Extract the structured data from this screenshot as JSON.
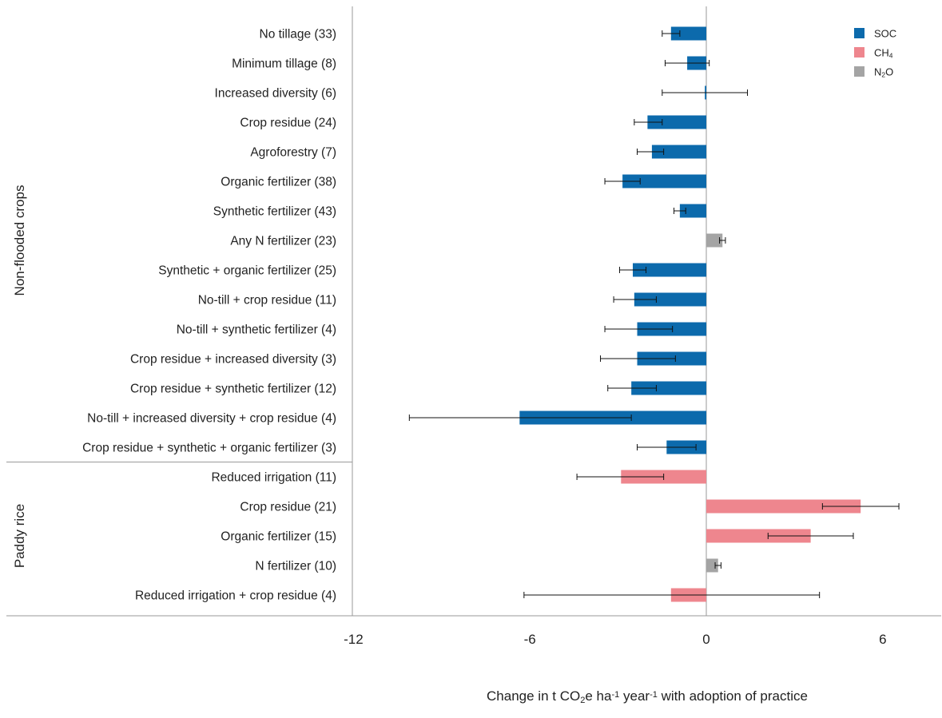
{
  "chart_data": {
    "type": "bar",
    "orientation": "horizontal",
    "xlabel": {
      "parts": [
        {
          "t": "Change in t CO",
          "s": "normal"
        },
        {
          "t": "2",
          "s": "sub"
        },
        {
          "t": "e ha",
          "s": "normal"
        },
        {
          "t": "-1",
          "s": "sup"
        },
        {
          "t": " year",
          "s": "normal"
        },
        {
          "t": "-1",
          "s": "sup"
        },
        {
          "t": " with adoption of practice",
          "s": "normal"
        }
      ]
    },
    "xlim": [
      -12,
      8
    ],
    "xticks": [
      -12,
      -6,
      0,
      6
    ],
    "grid": false,
    "legend_position": "top-right",
    "legend": [
      {
        "key": "SOC",
        "parts": [
          {
            "t": "SOC",
            "s": "normal"
          }
        ],
        "color": "#0c6aac"
      },
      {
        "key": "CH4",
        "parts": [
          {
            "t": "CH",
            "s": "normal"
          },
          {
            "t": "4",
            "s": "sub"
          }
        ],
        "color": "#ee868e"
      },
      {
        "key": "N2O",
        "parts": [
          {
            "t": "N",
            "s": "normal"
          },
          {
            "t": "2",
            "s": "sub"
          },
          {
            "t": "O",
            "s": "normal"
          }
        ],
        "color": "#a4a4a4"
      }
    ],
    "groups": [
      {
        "name": "Non-flooded crops",
        "start": 0,
        "end": 14
      },
      {
        "name": "Paddy rice",
        "start": 15,
        "end": 19
      }
    ],
    "bars": [
      {
        "label": "No tillage (33)",
        "value": -1.2,
        "lo": -1.5,
        "hi": -0.9,
        "series": "SOC"
      },
      {
        "label": "Minimum tillage (8)",
        "value": -0.65,
        "lo": -1.4,
        "hi": 0.1,
        "series": "SOC"
      },
      {
        "label": "Increased diversity (6)",
        "value": -0.05,
        "lo": -1.5,
        "hi": 1.4,
        "series": "SOC"
      },
      {
        "label": "Crop residue (24)",
        "value": -2.0,
        "lo": -2.45,
        "hi": -1.5,
        "series": "SOC"
      },
      {
        "label": "Agroforestry (7)",
        "value": -1.85,
        "lo": -2.35,
        "hi": -1.45,
        "series": "SOC"
      },
      {
        "label": "Organic fertilizer (38)",
        "value": -2.85,
        "lo": -3.45,
        "hi": -2.25,
        "series": "SOC"
      },
      {
        "label": "Synthetic fertilizer (43)",
        "value": -0.9,
        "lo": -1.1,
        "hi": -0.7,
        "series": "SOC"
      },
      {
        "label": "Any N fertilizer (23)",
        "value": 0.55,
        "lo": 0.45,
        "hi": 0.65,
        "series": "N2O"
      },
      {
        "label": "Synthetic + organic fertilizer (25)",
        "value": -2.5,
        "lo": -2.95,
        "hi": -2.05,
        "series": "SOC"
      },
      {
        "label": "No-till + crop residue (11)",
        "value": -2.45,
        "lo": -3.15,
        "hi": -1.7,
        "series": "SOC"
      },
      {
        "label": "No-till + synthetic fertilizer (4)",
        "value": -2.35,
        "lo": -3.45,
        "hi": -1.15,
        "series": "SOC"
      },
      {
        "label": "Crop residue + increased diversity (3)",
        "value": -2.35,
        "lo": -3.6,
        "hi": -1.05,
        "series": "SOC"
      },
      {
        "label": "Crop residue + synthetic fertilizer (12)",
        "value": -2.55,
        "lo": -3.35,
        "hi": -1.7,
        "series": "SOC"
      },
      {
        "label": "No-till + increased diversity + crop residue (4)",
        "value": -6.35,
        "lo": -10.1,
        "hi": -2.55,
        "series": "SOC"
      },
      {
        "label": "Crop residue + synthetic + organic fertilizer (3)",
        "value": -1.35,
        "lo": -2.35,
        "hi": -0.35,
        "series": "SOC"
      },
      {
        "label": "Reduced irrigation (11)",
        "value": -2.9,
        "lo": -4.4,
        "hi": -1.45,
        "series": "CH4"
      },
      {
        "label": "Crop residue (21)",
        "value": 5.25,
        "lo": 3.95,
        "hi": 6.55,
        "series": "CH4"
      },
      {
        "label": "Organic fertilizer (15)",
        "value": 3.55,
        "lo": 2.1,
        "hi": 5.0,
        "series": "CH4"
      },
      {
        "label": "N fertilizer (10)",
        "value": 0.4,
        "lo": 0.3,
        "hi": 0.5,
        "series": "N2O"
      },
      {
        "label": "Reduced irrigation + crop residue (4)",
        "value": -1.2,
        "lo": -6.2,
        "hi": 3.85,
        "series": "CH4"
      }
    ]
  }
}
